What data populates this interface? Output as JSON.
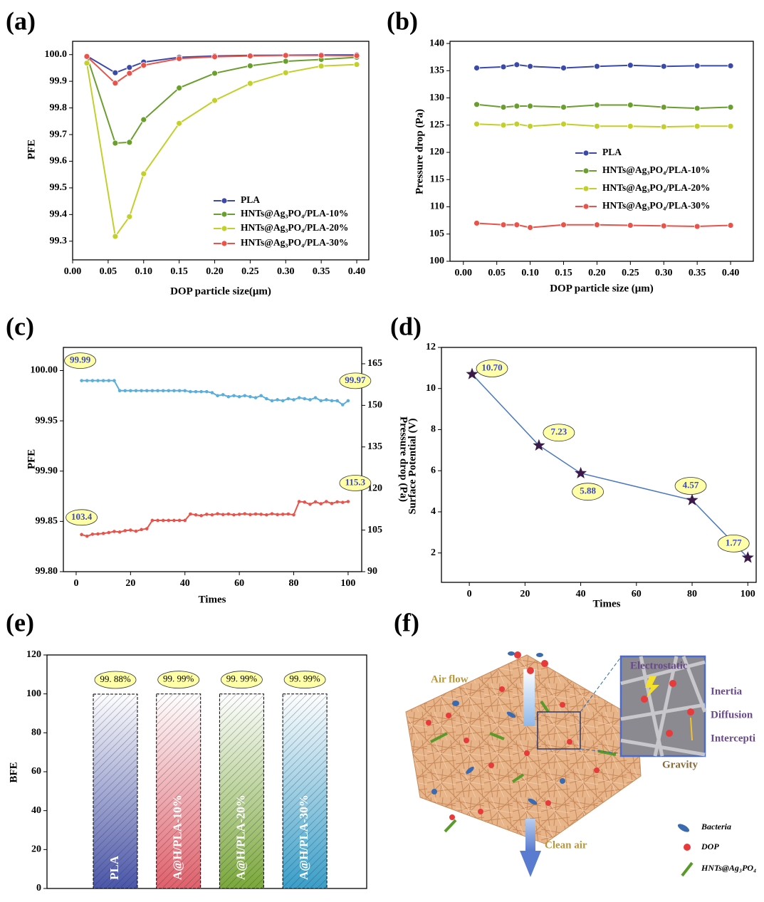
{
  "panel_labels": [
    "(a)",
    "(b)",
    "(c)",
    "(d)",
    "(e)",
    "(f)"
  ],
  "chart_data": [
    {
      "type": "line",
      "xlabel": "DOP particle size(μm)",
      "ylabel": "PFE",
      "x": [
        0.02,
        0.06,
        0.08,
        0.1,
        0.15,
        0.2,
        0.25,
        0.3,
        0.35,
        0.4
      ],
      "series": [
        {
          "name": "PLA",
          "color": "#3b4aa8",
          "values": [
            99.995,
            99.932,
            99.952,
            99.972,
            99.99,
            99.995,
            99.997,
            99.998,
            99.999,
            99.999
          ]
        },
        {
          "name": "HNTs@Ag₃PO₄/PLA-10%",
          "color": "#6a9e2e",
          "values": [
            99.995,
            99.668,
            99.671,
            99.756,
            99.875,
            99.93,
            99.958,
            99.975,
            99.982,
            99.99
          ]
        },
        {
          "name": "HNTs@Ag₃PO₄/PLA-20%",
          "color": "#c3cf2a",
          "values": [
            99.968,
            99.318,
            99.392,
            99.553,
            99.742,
            99.828,
            99.892,
            99.932,
            99.957,
            99.963
          ]
        },
        {
          "name": "HNTs@Ag₃PO₄/PLA-30%",
          "color": "#e9534a",
          "values": [
            99.993,
            99.893,
            99.93,
            99.96,
            99.985,
            99.992,
            99.995,
            99.997,
            99.997,
            99.996
          ]
        }
      ],
      "xlim": [
        0,
        0.417
      ],
      "ylim": [
        99.23,
        100.05
      ],
      "xticks": [
        {
          "value": 0,
          "label": "0.00"
        },
        {
          "value": 0.05,
          "label": "0.05"
        },
        {
          "value": 0.1,
          "label": "0.10"
        },
        {
          "value": 0.15,
          "label": "0.15"
        },
        {
          "value": 0.2,
          "label": "0.20"
        },
        {
          "value": 0.25,
          "label": "0.25"
        },
        {
          "value": 0.3,
          "label": "0.30"
        },
        {
          "value": 0.35,
          "label": "0.35"
        },
        {
          "value": 0.4,
          "label": "0.40"
        }
      ],
      "yticks": [
        99.3,
        99.4,
        99.5,
        99.6,
        99.7,
        99.8,
        99.9,
        {
          "value": 100,
          "label": "100.0"
        }
      ],
      "legend": "lower right",
      "marker": "circle"
    },
    {
      "type": "line",
      "xlabel": "DOP particle size (μm)",
      "ylabel": "Pressure drop (Pa)",
      "x": [
        0.02,
        0.06,
        0.08,
        0.1,
        0.15,
        0.2,
        0.25,
        0.3,
        0.35,
        0.4
      ],
      "series": [
        {
          "name": "PLA",
          "color": "#3b4aa8",
          "values": [
            135.5,
            135.7,
            136.1,
            135.8,
            135.5,
            135.8,
            136.0,
            135.8,
            135.9,
            135.9
          ]
        },
        {
          "name": "HNTs@Ag₃PO₄/PLA-10%",
          "color": "#6a9e2e",
          "values": [
            128.8,
            128.3,
            128.5,
            128.5,
            128.3,
            128.7,
            128.7,
            128.3,
            128.1,
            128.3
          ]
        },
        {
          "name": "HNTs@Ag₃PO₄/PLA-20%",
          "color": "#c3cf2a",
          "values": [
            125.2,
            125.0,
            125.2,
            124.8,
            125.2,
            124.8,
            124.8,
            124.7,
            124.8,
            124.8
          ]
        },
        {
          "name": "HNTs@Ag₃PO₄/PLA-30%",
          "color": "#e9534a",
          "values": [
            107.0,
            106.7,
            106.7,
            106.2,
            106.7,
            106.7,
            106.6,
            106.5,
            106.4,
            106.6
          ]
        }
      ],
      "xlim": [
        -0.02,
        0.434
      ],
      "ylim": [
        100,
        140.4
      ],
      "xticks": [
        {
          "value": 0,
          "label": "0.00"
        },
        {
          "value": 0.05,
          "label": "0.05"
        },
        {
          "value": 0.1,
          "label": "0.10"
        },
        {
          "value": 0.15,
          "label": "0.15"
        },
        {
          "value": 0.2,
          "label": "0.20"
        },
        {
          "value": 0.25,
          "label": "0.25"
        },
        {
          "value": 0.3,
          "label": "0.30"
        },
        {
          "value": 0.35,
          "label": "0.35"
        },
        {
          "value": 0.4,
          "label": "0.40"
        }
      ],
      "yticks": [
        100,
        105,
        110,
        115,
        120,
        125,
        130,
        135,
        140
      ],
      "legend": "center right",
      "marker": "circle"
    },
    {
      "type": "line",
      "xlabel": "Times",
      "ylabel": "PFE",
      "y2label": "Pressure drop (Pa)",
      "x": [
        2,
        4,
        6,
        8,
        10,
        12,
        14,
        16,
        18,
        20,
        22,
        24,
        26,
        28,
        30,
        32,
        34,
        36,
        38,
        40,
        42,
        44,
        46,
        48,
        50,
        52,
        54,
        56,
        58,
        60,
        62,
        64,
        66,
        68,
        70,
        72,
        74,
        76,
        78,
        80,
        82,
        84,
        86,
        88,
        90,
        92,
        94,
        96,
        98,
        100
      ],
      "series": [
        {
          "color": "#5aaedc",
          "values": [
            99.99,
            99.99,
            99.99,
            99.99,
            99.99,
            99.99,
            99.99,
            99.98,
            99.98,
            99.98,
            99.98,
            99.98,
            99.98,
            99.98,
            99.98,
            99.98,
            99.98,
            99.98,
            99.98,
            99.98,
            99.979,
            99.979,
            99.979,
            99.979,
            99.978,
            99.975,
            99.976,
            99.974,
            99.975,
            99.974,
            99.975,
            99.974,
            99.973,
            99.975,
            99.972,
            99.97,
            99.971,
            99.97,
            99.972,
            99.971,
            99.973,
            99.972,
            99.971,
            99.973,
            99.97,
            99.971,
            99.97,
            99.97,
            99.966,
            99.97
          ]
        },
        {
          "color": "#e9534a",
          "axis": "y2",
          "values": [
            103.4,
            102.8,
            103.5,
            103.6,
            103.8,
            104.1,
            104.5,
            104.3,
            104.8,
            105.0,
            104.6,
            105.2,
            105.5,
            108.5,
            108.5,
            108.5,
            108.5,
            108.5,
            108.5,
            108.5,
            110.8,
            110.5,
            110.2,
            110.7,
            110.5,
            110.9,
            110.6,
            110.8,
            110.5,
            110.7,
            110.9,
            110.6,
            110.8,
            110.7,
            110.5,
            110.9,
            110.6,
            110.7,
            110.8,
            110.5,
            115.3,
            115.1,
            114.3,
            115.2,
            114.5,
            115.3,
            114.6,
            115.2,
            115.0,
            115.3
          ]
        }
      ],
      "annotations": [
        "99.99",
        "99.97",
        "103.4",
        "115.3"
      ],
      "xlim": [
        -4.7,
        105
      ],
      "ylim": [
        99.8,
        100.023
      ],
      "y2lim": [
        90,
        170.9
      ],
      "xticks": [
        0,
        20,
        40,
        60,
        80,
        100
      ],
      "yticks": [
        {
          "value": 99.8,
          "label": "99.80"
        },
        {
          "value": 99.85,
          "label": "99.85"
        },
        {
          "value": 99.9,
          "label": "99.90"
        },
        {
          "value": 99.95,
          "label": "99.95"
        },
        {
          "value": 100,
          "label": "100.00"
        }
      ],
      "y2ticks": [
        90,
        105,
        120,
        135,
        150,
        165
      ],
      "marker": "circle"
    },
    {
      "type": "line",
      "xlabel": "Times",
      "ylabel": "Surface Potential (V)",
      "x": [
        1,
        25,
        40,
        80,
        100
      ],
      "series": [
        {
          "color": "#4a78c0",
          "marker_color": "#3b1a4a",
          "values": [
            10.7,
            7.23,
            5.88,
            4.57,
            1.77
          ],
          "value_labels": [
            "10.70",
            "7.23",
            "5.88",
            "4.57",
            "1.77"
          ]
        }
      ],
      "xlim": [
        -10,
        103
      ],
      "ylim": [
        0.57,
        12
      ],
      "xticks": [
        0,
        20,
        40,
        60,
        80,
        100
      ],
      "yticks": [
        2,
        4,
        6,
        8,
        10,
        12
      ],
      "marker": "star"
    },
    {
      "type": "bar",
      "ylabel": "BFE",
      "categories": [
        "PLA",
        "A@H/PLA-10%",
        "A@H/PLA-20%",
        "A@H/PLA-30%"
      ],
      "values": [
        99.88,
        99.99,
        99.99,
        99.99
      ],
      "value_labels": [
        "99. 88%",
        "99. 99%",
        "99. 99%",
        "99. 99%"
      ],
      "colors": [
        "#4a56a8",
        "#e0606a",
        "#7aa83a",
        "#3a9ec8"
      ],
      "ylim": [
        0,
        120
      ],
      "yticks": [
        0,
        20,
        40,
        60,
        80,
        100,
        120
      ]
    }
  ],
  "illustration": {
    "labels": [
      "Air flow",
      "Electrostatic",
      "Inertia",
      "Diffusion",
      "Intercepti",
      "Gravity",
      "Clean air"
    ],
    "legend": [
      "Bacteria",
      "DOP",
      "HNTs@Ag₃PO₄"
    ]
  }
}
